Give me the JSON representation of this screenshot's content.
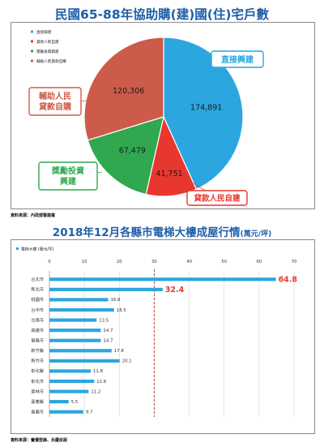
{
  "charts": {
    "pie": {
      "title": "民國65-88年協助購(建)國(住)宅戶數",
      "source": "資料來源：內政部營建署",
      "colors": [
        "#2ba6df",
        "#e8372f",
        "#2fa84f",
        "#cd5b4b"
      ]
    },
    "bar": {
      "title_main": "2018年12月各縣市電梯大樓成屋行情",
      "title_unit": "(萬元/坪)",
      "source": "資料來源：實價登錄、永慶房屋",
      "legend_label": "電梯大樓 (萬元/坪)",
      "bar_color": "#2ba6df",
      "highlight_color": "#e8372f",
      "highlight_line_color": "#c0392b"
    }
  },
  "chart_data": [
    {
      "type": "pie",
      "title": "民國65-88年協助購(建)國(住)宅戶數",
      "slices": [
        {
          "legend": "直接興建",
          "callout": "直接興建",
          "value": 174891
        },
        {
          "legend": "貸款人民自建",
          "callout": "貸款人民自建",
          "value": 41751
        },
        {
          "legend": "獎勵投資興建",
          "callout": "獎勵投資興建",
          "value": 67479
        },
        {
          "legend": "輔助人民貸款自購",
          "callout": "輔助人民貸款自購",
          "value": 120306
        }
      ],
      "value_labels": [
        "174,891",
        "41,751",
        "67,479",
        "120,306"
      ],
      "legend_position": "top-left"
    },
    {
      "type": "bar",
      "orientation": "horizontal",
      "title": "2018年12月各縣市電梯大樓成屋行情",
      "unit": "萬元/坪",
      "series_name": "電梯大樓 (萬元/坪)",
      "categories": [
        "台北市",
        "新北市",
        "桃園市",
        "台中市",
        "台南市",
        "高雄市",
        "基隆市",
        "新竹縣",
        "新竹市",
        "彰化縣",
        "彰化市",
        "雲林市",
        "嘉義縣",
        "嘉義市"
      ],
      "values": [
        64.8,
        32.4,
        16.8,
        18.5,
        13.5,
        14.7,
        14.7,
        17.8,
        20.1,
        11.8,
        12.8,
        11.2,
        5.5,
        9.7
      ],
      "value_labels": [
        "64.8",
        "32.4",
        "16.8",
        "18.5",
        "13.5",
        "14.7",
        "14.7",
        "17.8",
        "20.1",
        "11.8",
        "12.8",
        "11.2",
        "5.5",
        "9.7"
      ],
      "highlighted": [
        0,
        1
      ],
      "reference_line": 30,
      "xlim": [
        0,
        70
      ],
      "xticks": [
        "0",
        "10",
        "20",
        "30",
        "40",
        "50",
        "60",
        "70"
      ],
      "grid": true
    }
  ]
}
